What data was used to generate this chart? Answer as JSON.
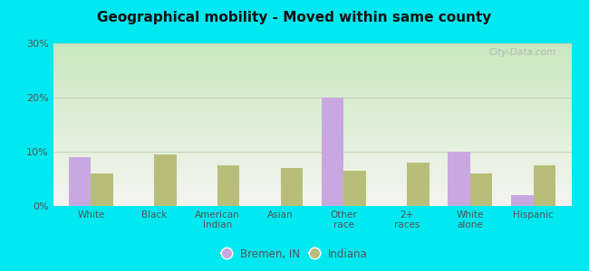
{
  "title": "Geographical mobility - Moved within same county",
  "categories": [
    "White",
    "Black",
    "American\nIndian",
    "Asian",
    "Other\nrace",
    "2+\nraces",
    "White\nalone",
    "Hispanic"
  ],
  "bremen_values": [
    9.0,
    0.0,
    0.0,
    0.0,
    20.0,
    0.0,
    10.0,
    2.0
  ],
  "indiana_values": [
    6.0,
    9.5,
    7.5,
    7.0,
    6.5,
    8.0,
    6.0,
    7.5
  ],
  "bremen_color": "#c9a8e0",
  "indiana_color": "#b8be7a",
  "ylim": [
    0,
    30
  ],
  "yticks": [
    0,
    10,
    20,
    30
  ],
  "ytick_labels": [
    "0%",
    "10%",
    "20%",
    "30%"
  ],
  "bg_top_color": "#f5f5f0",
  "bg_bottom_color": "#c8e8c0",
  "outer_background": "#00e8f0",
  "grid_color": "#c8d8b8",
  "bar_width": 0.35,
  "legend_bremen": "Bremen, IN",
  "legend_indiana": "Indiana",
  "watermark": "City-Data.com"
}
